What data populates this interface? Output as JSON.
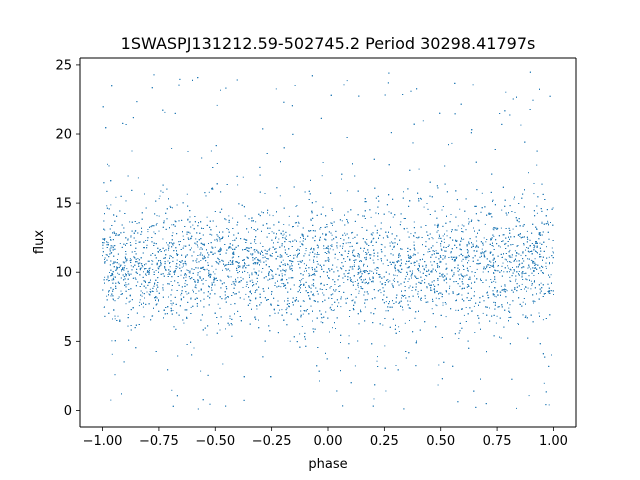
{
  "chart_data": {
    "type": "scatter",
    "title": "1SWASPJ131212.59-502745.2 Period 30298.41797s",
    "xlabel": "phase",
    "ylabel": "flux",
    "xlim": [
      -1.1,
      1.1
    ],
    "ylim": [
      -1.2,
      25.5
    ],
    "xticks": [
      -1.0,
      -0.75,
      -0.5,
      -0.25,
      0.0,
      0.25,
      0.5,
      0.75,
      1.0
    ],
    "xtick_labels": [
      "−1.00",
      "−0.75",
      "−0.50",
      "−0.25",
      "0.00",
      "0.25",
      "0.50",
      "0.75",
      "1.00"
    ],
    "yticks": [
      0,
      5,
      10,
      15,
      20,
      25
    ],
    "ytick_labels": [
      "0",
      "5",
      "10",
      "15",
      "20",
      "25"
    ],
    "grid": false,
    "marker_color": "#1f77b4",
    "series": [
      {
        "description": "folded light curve; dense band between flux ~6 and ~15 across phase -1.00 to 1.00, core ~8-13, sparse outliers up to ~24.5 and down to ~0",
        "phase_range": [
          -1.0,
          1.0
        ],
        "flux_core": [
          8,
          13
        ],
        "flux_band": [
          6,
          15
        ],
        "flux_extremes": [
          0,
          24.5
        ],
        "sample_points": [
          [
            -1.0,
            11.2
          ],
          [
            -0.9,
            9.1
          ],
          [
            -0.8,
            12.3
          ],
          [
            -0.7,
            10.4
          ],
          [
            -0.6,
            8.7
          ],
          [
            -0.5,
            11.8
          ],
          [
            -0.4,
            9.6
          ],
          [
            -0.3,
            12.1
          ],
          [
            -0.2,
            10.2
          ],
          [
            -0.1,
            8.9
          ],
          [
            0.0,
            11.5
          ],
          [
            0.1,
            9.4
          ],
          [
            0.2,
            12.4
          ],
          [
            0.3,
            10.1
          ],
          [
            0.4,
            8.6
          ],
          [
            0.5,
            11.9
          ],
          [
            0.6,
            9.7
          ],
          [
            0.7,
            12.2
          ],
          [
            0.8,
            10.3
          ],
          [
            0.9,
            8.8
          ],
          [
            1.0,
            11.4
          ]
        ]
      }
    ]
  }
}
